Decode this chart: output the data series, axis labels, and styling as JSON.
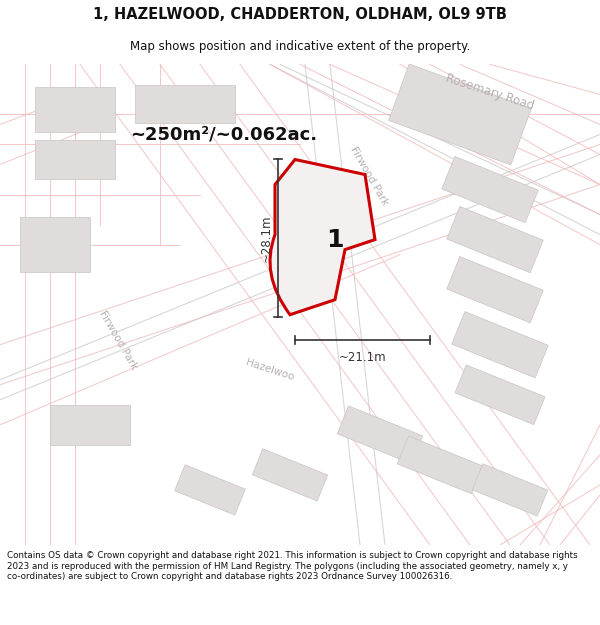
{
  "title_line1": "1, HAZELWOOD, CHADDERTON, OLDHAM, OL9 9TB",
  "title_line2": "Map shows position and indicative extent of the property.",
  "area_text": "~250m²/~0.062ac.",
  "plot_number": "1",
  "dim_vertical": "~28.1m",
  "dim_horizontal": "~21.1m",
  "footer_text": "Contains OS data © Crown copyright and database right 2021. This information is subject to Crown copyright and database rights 2023 and is reproduced with the permission of HM Land Registry. The polygons (including the associated geometry, namely x, y co-ordinates) are subject to Crown copyright and database rights 2023 Ordnance Survey 100026316.",
  "map_bg": "#f7f4f4",
  "road_line_color": "#f0b8b8",
  "road_label_color": "#b8b0b0",
  "building_color": "#e0dcdc",
  "building_edge": "#c8c4c4",
  "plot_fill": "#f4f0f0",
  "plot_edge": "#cc0000",
  "text_color": "#111111",
  "dim_color": "#333333",
  "footer_color": "#111111",
  "gray_road_color": "#c8c4c4"
}
